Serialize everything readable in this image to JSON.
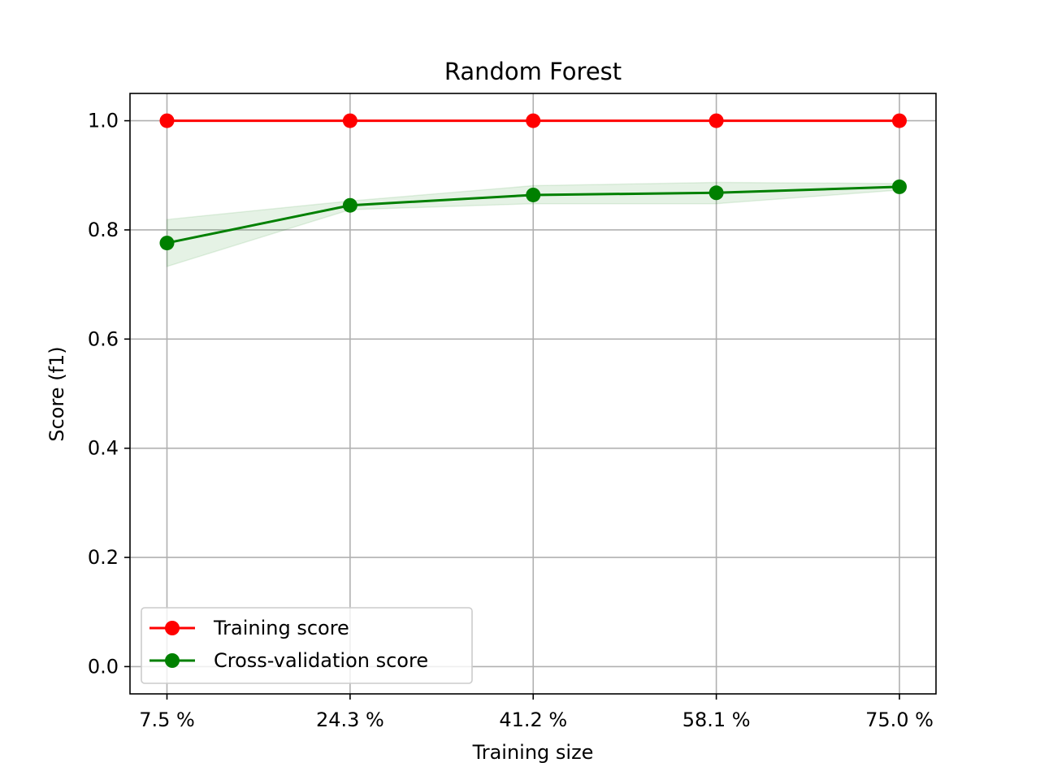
{
  "chart_data": {
    "type": "line",
    "title": "Random Forest",
    "xlabel": "Training size",
    "ylabel": "Score (f1)",
    "categories": [
      "7.5 %",
      "24.3 %",
      "41.2 %",
      "58.1 %",
      "75.0 %"
    ],
    "ylim": [
      -0.05,
      1.05
    ],
    "yticks": [
      "0.0",
      "0.2",
      "0.4",
      "0.6",
      "0.8",
      "1.0"
    ],
    "grid": true,
    "legend_position": "lower-left",
    "series": [
      {
        "name": "Training score",
        "color": "#ff0000",
        "values": [
          1.0,
          1.0,
          1.0,
          1.0,
          1.0
        ],
        "band_lower": [
          1.0,
          1.0,
          1.0,
          1.0,
          1.0
        ],
        "band_upper": [
          1.0,
          1.0,
          1.0,
          1.0,
          1.0
        ]
      },
      {
        "name": "Cross-validation score",
        "color": "#008000",
        "values": [
          0.776,
          0.845,
          0.864,
          0.868,
          0.879
        ],
        "band_lower": [
          0.733,
          0.837,
          0.848,
          0.848,
          0.873
        ],
        "band_upper": [
          0.819,
          0.853,
          0.881,
          0.887,
          0.885
        ]
      }
    ]
  }
}
